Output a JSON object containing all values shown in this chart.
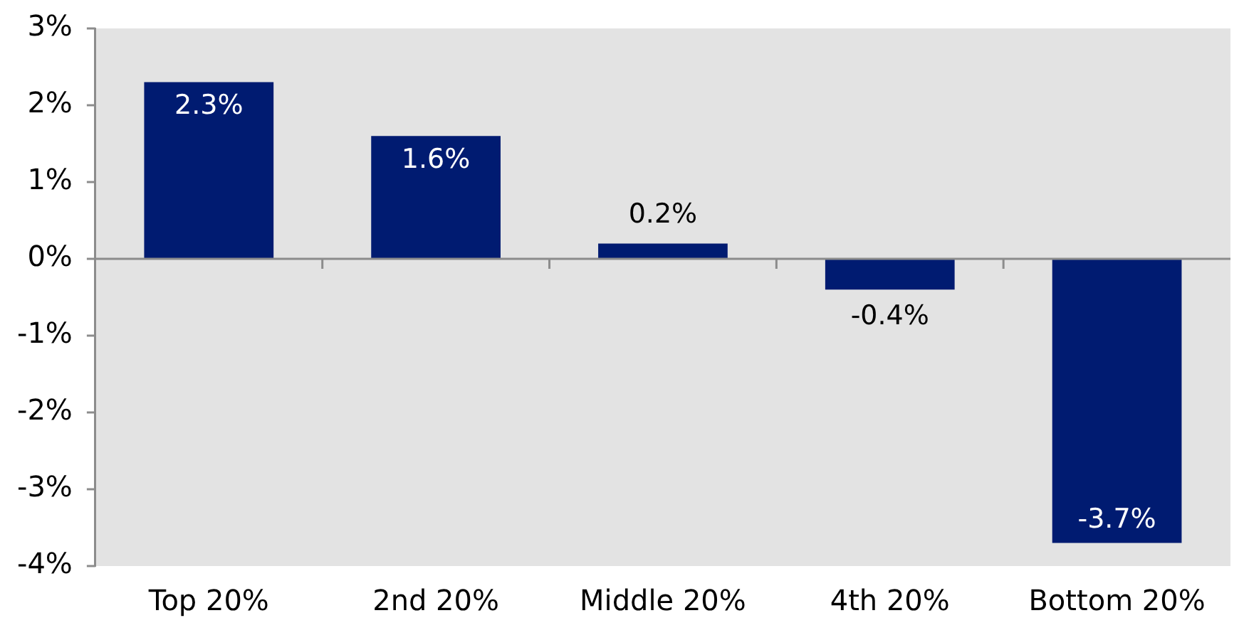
{
  "chart_data": {
    "type": "bar",
    "categories": [
      "Top 20%",
      "2nd 20%",
      "Middle 20%",
      "4th 20%",
      "Bottom 20%"
    ],
    "values": [
      2.3,
      1.6,
      0.2,
      -0.4,
      -3.7
    ],
    "color": "#001b71",
    "value_labels": [
      "2.3%",
      "1.6%",
      "0.2%",
      "-0.4%",
      "-3.7%"
    ],
    "ylim": [
      -4,
      3
    ],
    "yticks": [
      {
        "value": -4,
        "label": "-4%"
      },
      {
        "value": -3,
        "label": "-3%"
      },
      {
        "value": -2,
        "label": "-2%"
      },
      {
        "value": -1,
        "label": "-1%"
      },
      {
        "value": 0,
        "label": "0%"
      },
      {
        "value": 1,
        "label": "1%"
      },
      {
        "value": 2,
        "label": "2%"
      },
      {
        "value": 3,
        "label": "3%"
      }
    ],
    "ref_lines": [
      {
        "axis": "y",
        "value": 0,
        "color": "#8c8c8c"
      }
    ],
    "grid": false,
    "legend": false
  }
}
